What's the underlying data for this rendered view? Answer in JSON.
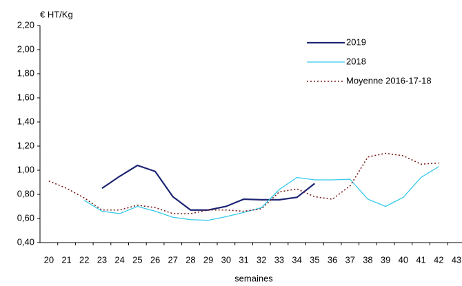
{
  "chart_data": {
    "type": "line",
    "ylabel": "€ HT/Kg",
    "xlabel": "semaines",
    "categories": [
      "20",
      "21",
      "22",
      "23",
      "24",
      "25",
      "26",
      "27",
      "28",
      "29",
      "30",
      "31",
      "32",
      "33",
      "34",
      "35",
      "36",
      "37",
      "38",
      "39",
      "40",
      "41",
      "42",
      "43"
    ],
    "series": [
      {
        "name": "2019",
        "color": "#1c2473",
        "line_style": "solid",
        "line_width": 2.2,
        "values": [
          null,
          null,
          null,
          0.85,
          0.95,
          1.04,
          0.99,
          0.78,
          0.67,
          0.67,
          0.7,
          0.76,
          0.755,
          0.755,
          0.775,
          0.89,
          null,
          null,
          null,
          null,
          null,
          null,
          null,
          null
        ]
      },
      {
        "name": "2018",
        "color": "#33c8ea",
        "line_style": "solid",
        "line_width": 1.3,
        "values": [
          null,
          null,
          0.75,
          0.66,
          0.64,
          0.7,
          0.66,
          0.61,
          0.59,
          0.585,
          0.615,
          0.65,
          0.69,
          0.84,
          0.94,
          0.92,
          0.92,
          0.925,
          0.76,
          0.7,
          0.775,
          0.94,
          1.03,
          null
        ]
      },
      {
        "name": "Moyenne 2016-17-18",
        "color": "#7a1616",
        "line_style": "dotted",
        "line_width": 1.6,
        "values": [
          0.91,
          0.85,
          0.77,
          0.67,
          0.67,
          0.71,
          0.69,
          0.64,
          0.64,
          0.67,
          0.67,
          0.66,
          0.68,
          0.82,
          0.845,
          0.78,
          0.76,
          0.87,
          1.11,
          1.14,
          1.12,
          1.05,
          1.06,
          null
        ]
      }
    ],
    "ylim": [
      0.4,
      2.2
    ],
    "yticks": [
      {
        "value": 0.4,
        "label": "0,40"
      },
      {
        "value": 0.6,
        "label": "0,60"
      },
      {
        "value": 0.8,
        "label": "0,80"
      },
      {
        "value": 1.0,
        "label": "1,00"
      },
      {
        "value": 1.2,
        "label": "1,20"
      },
      {
        "value": 1.4,
        "label": "1,40"
      },
      {
        "value": 1.6,
        "label": "1,60"
      },
      {
        "value": 1.8,
        "label": "1,80"
      },
      {
        "value": 2.0,
        "label": "2,00"
      },
      {
        "value": 2.2,
        "label": "2,20"
      }
    ],
    "grid": false,
    "legend": "top-right"
  }
}
